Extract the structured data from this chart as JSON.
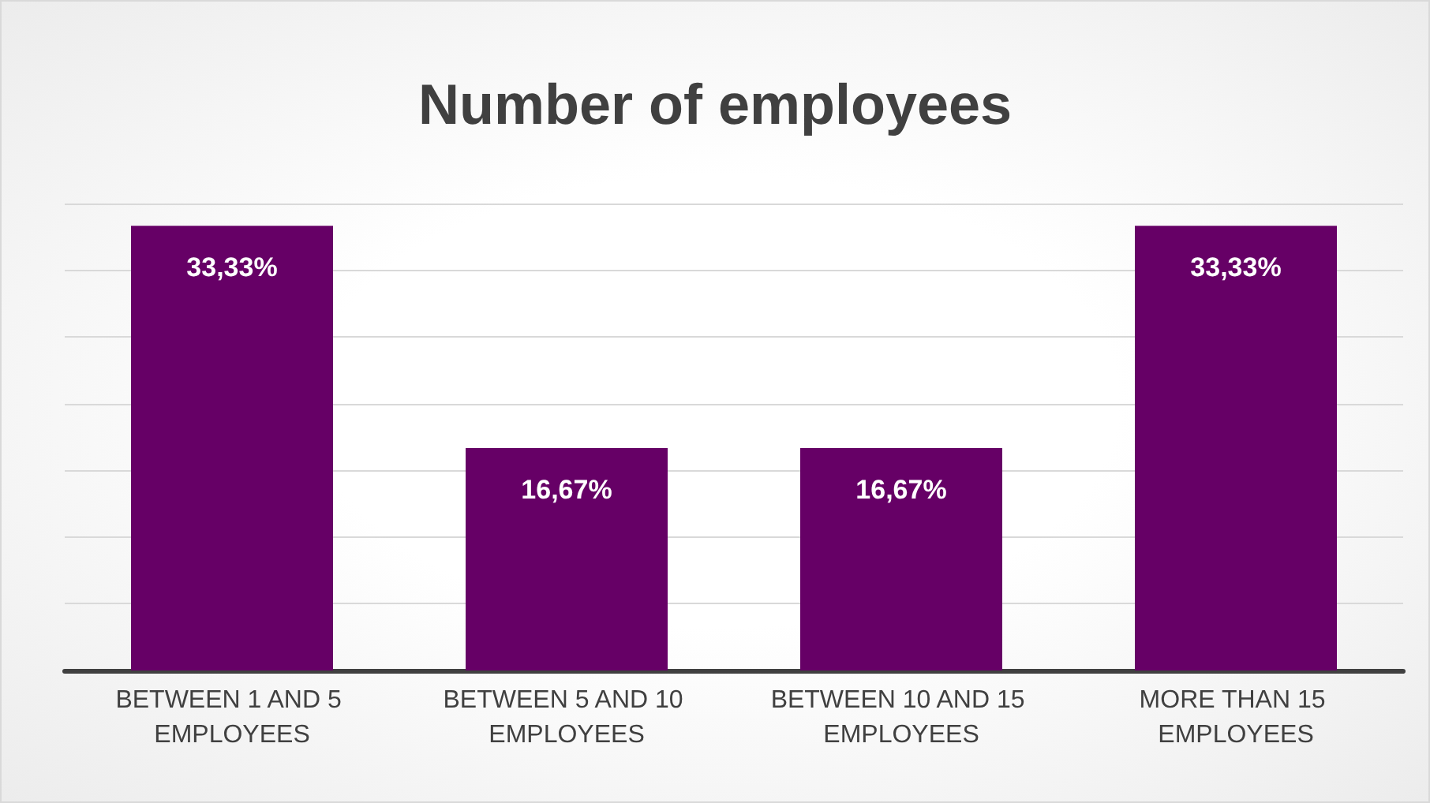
{
  "chart_data": {
    "type": "bar",
    "title": "Number of employees",
    "categories": [
      "BETWEEN 1 AND 5 EMPLOYEES",
      "BETWEEN 5 AND 10 EMPLOYEES",
      "BETWEEN 10 AND 15 EMPLOYEES",
      "MORE THAN 15 EMPLOYEES"
    ],
    "values": [
      33.33,
      16.67,
      16.67,
      33.33
    ],
    "value_labels": [
      "33,33%",
      "16,67%",
      "16,67%",
      "33,33%"
    ],
    "color": "#660066",
    "ylim": [
      0,
      35
    ],
    "yticks": [
      {
        "value": 0,
        "label": null
      },
      {
        "value": 5,
        "label": null
      },
      {
        "value": 10,
        "label": null
      },
      {
        "value": 15,
        "label": null
      },
      {
        "value": 20,
        "label": null
      },
      {
        "value": 25,
        "label": null
      },
      {
        "value": 30,
        "label": null
      },
      {
        "value": 35,
        "label": null
      }
    ],
    "grid": "y",
    "tick_labels": "x"
  }
}
